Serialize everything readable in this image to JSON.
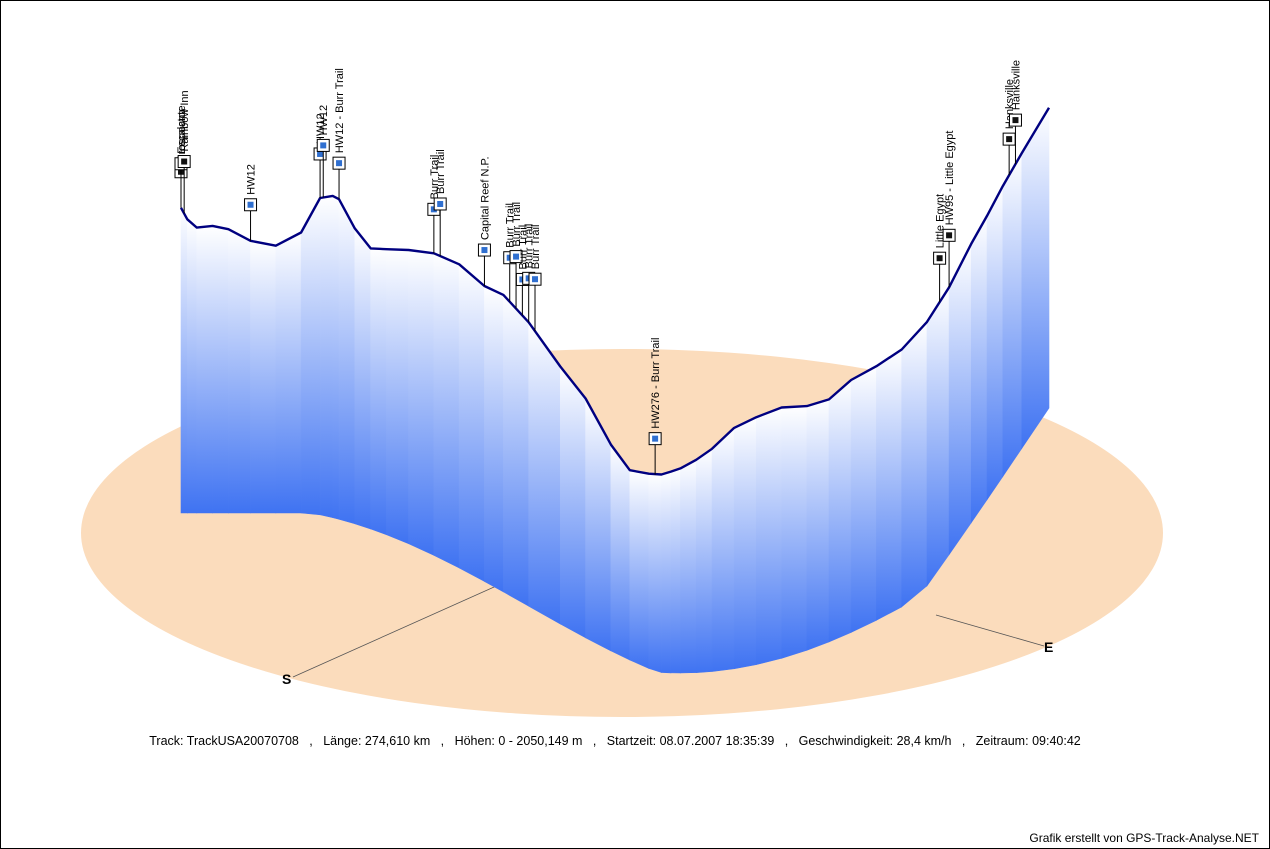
{
  "chart_data": {
    "type": "area",
    "subtype": "3d-elevation-profile",
    "x": [
      0,
      2,
      5,
      10,
      15,
      22,
      30,
      38,
      44,
      48,
      50,
      55,
      60,
      65,
      72,
      80,
      88,
      96,
      102,
      110,
      120,
      128,
      136,
      142,
      148,
      152,
      155,
      158,
      163,
      168,
      175,
      182,
      190,
      198,
      205,
      212,
      220,
      228,
      236,
      243,
      250,
      255,
      260,
      266,
      274.61
    ],
    "y": [
      1850,
      1780,
      1730,
      1740,
      1720,
      1650,
      1620,
      1700,
      1920,
      1950,
      1940,
      1790,
      1700,
      1730,
      1780,
      1830,
      1840,
      1790,
      1800,
      1720,
      1560,
      1450,
      1250,
      1150,
      1180,
      1200,
      1220,
      1240,
      1290,
      1350,
      1460,
      1500,
      1520,
      1480,
      1470,
      1530,
      1540,
      1560,
      1600,
      1620,
      1690,
      1720,
      1760,
      1790,
      1820
    ],
    "waypoints": [
      {
        "name": "Prospector",
        "x": 0
      },
      {
        "name": "Escalante",
        "x": 0
      },
      {
        "name": "Rainbow Inn",
        "x": 1
      },
      {
        "name": "HW12",
        "x": 22
      },
      {
        "name": "HW12",
        "x": 44
      },
      {
        "name": "HW12",
        "x": 45
      },
      {
        "name": "HW12 - Burr Trail",
        "x": 50
      },
      {
        "name": "Burr Trail",
        "x": 80
      },
      {
        "name": "Burr Trail",
        "x": 82
      },
      {
        "name": "Capital Reef N.P.",
        "x": 96
      },
      {
        "name": "Burr Trail",
        "x": 104
      },
      {
        "name": "Burr Trail",
        "x": 106
      },
      {
        "name": "Burr Trail",
        "x": 108
      },
      {
        "name": "Burr Trail",
        "x": 110
      },
      {
        "name": "Burr Trail",
        "x": 112
      },
      {
        "name": "HW276 - Burr Trail",
        "x": 150
      },
      {
        "name": "Little Egypt",
        "x": 240
      },
      {
        "name": "HW95 - Little Egypt",
        "x": 243
      },
      {
        "name": "Hanksville",
        "x": 262
      },
      {
        "name": "Hanksville",
        "x": 264
      }
    ],
    "axis_labels": {
      "start": "S",
      "end": "E"
    },
    "ylim": [
      0,
      2050.149
    ],
    "base_color": "#fbdcbc",
    "line_color": "#000080",
    "fill_top_color": "#ffffff",
    "fill_bottom_color": "#3f73f2"
  },
  "info": {
    "track_label": "Track:",
    "track_value": "TrackUSA20070708",
    "length_label": "Länge:",
    "length_value": "274,610 km",
    "height_label": "Höhen:",
    "height_value": "0 - 2050,149 m",
    "start_label": "Startzeit:",
    "start_value": "08.07.2007 18:35:39",
    "speed_label": "Geschwindigkeit:",
    "speed_value": "28,4 km/h",
    "duration_label": "Zeitraum:",
    "duration_value": "09:40:42"
  },
  "credit": "Grafik erstellt von GPS-Track-Analyse.NET"
}
